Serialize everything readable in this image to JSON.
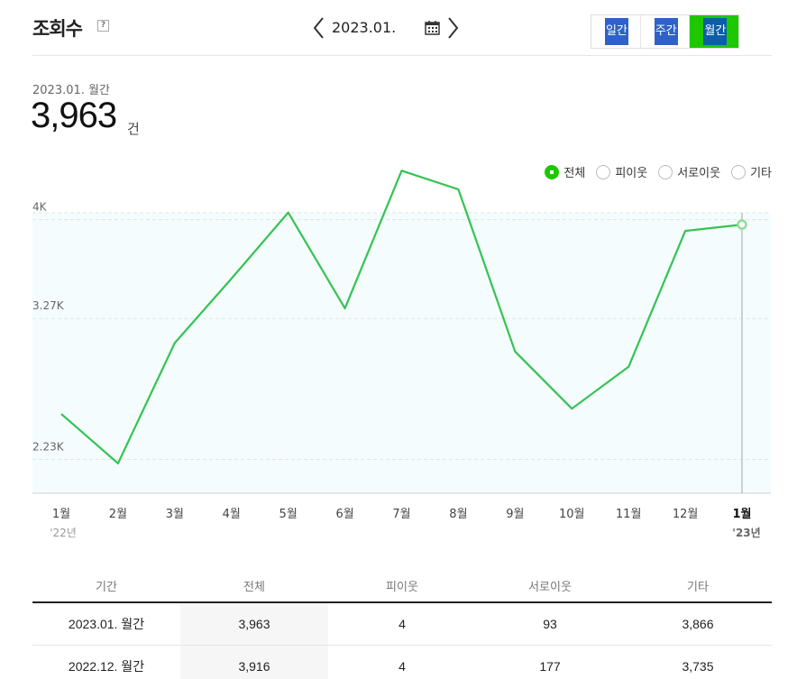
{
  "header": {
    "title": "조회수",
    "help_icon": "question-icon",
    "date": "2023.01.",
    "periods": [
      "일간",
      "주간",
      "월간"
    ],
    "active_period": 2
  },
  "summary": {
    "period_label": "2023.01. 월간",
    "value": "3,963",
    "unit": "건"
  },
  "legend": [
    {
      "label": "전체",
      "checked": true
    },
    {
      "label": "피이웃",
      "checked": false
    },
    {
      "label": "서로이웃",
      "checked": false
    },
    {
      "label": "기타",
      "checked": false
    }
  ],
  "chart_data": {
    "type": "line",
    "y_ticks": [
      {
        "value": 4000,
        "label": "4K"
      },
      {
        "value": 3270,
        "label": "3.27K"
      },
      {
        "value": 2230,
        "label": "2.23K"
      }
    ],
    "ylim": [
      1980,
      4050
    ],
    "categories": [
      "1월",
      "2월",
      "3월",
      "4월",
      "5월",
      "6월",
      "7월",
      "8월",
      "9월",
      "10월",
      "11월",
      "12월",
      "1월"
    ],
    "year_labels": [
      {
        "index": 0,
        "label": "'22년"
      },
      {
        "index": 12,
        "label": "'23년"
      }
    ],
    "highlight_index": 12,
    "line_color": "#34c353",
    "series": [
      {
        "values": [
          2565,
          2200,
          3089,
          3565,
          4052,
          3345,
          4361,
          4223,
          3026,
          2604,
          2913,
          3916,
          3963
        ]
      }
    ]
  },
  "table": {
    "columns": [
      "기간",
      "전체",
      "피이웃",
      "서로이웃",
      "기타"
    ],
    "rows": [
      [
        "2023.01. 월간",
        "3,963",
        "4",
        "93",
        "3,866"
      ],
      [
        "2022.12. 월간",
        "3,916",
        "4",
        "177",
        "3,735"
      ]
    ]
  }
}
